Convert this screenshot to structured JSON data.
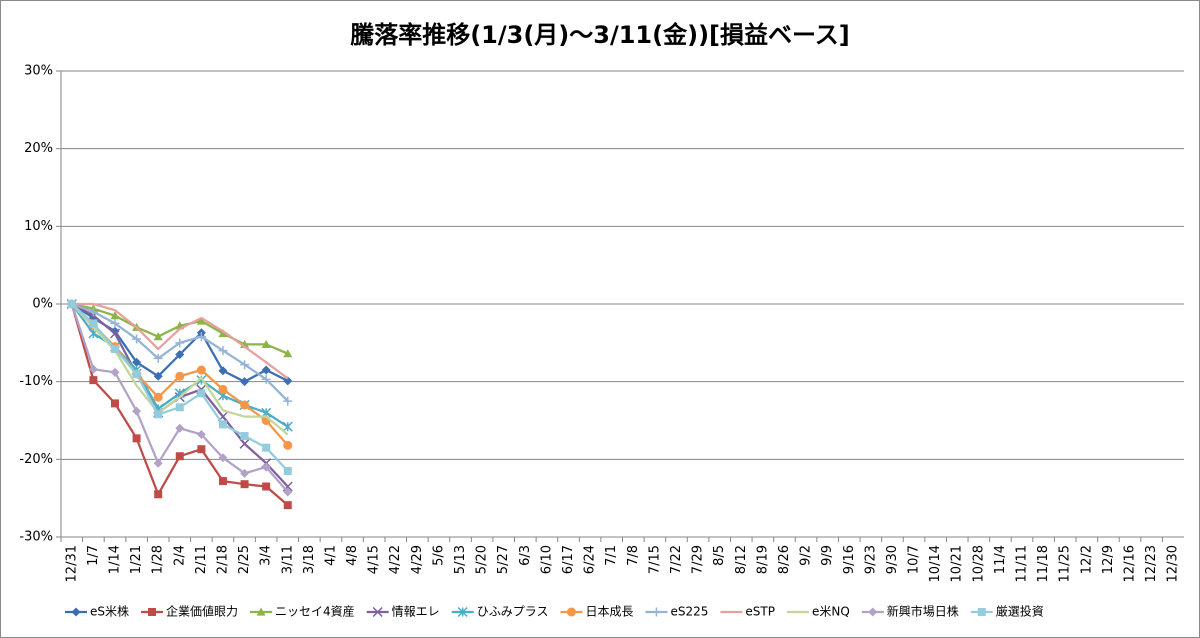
{
  "chart_data": {
    "type": "line",
    "title": "騰落率推移(1/3(月)～3/11(金))[損益ベース]",
    "categories": [
      "12/31",
      "1/7",
      "1/14",
      "1/21",
      "1/28",
      "2/4",
      "2/11",
      "2/18",
      "2/25",
      "3/4",
      "3/11",
      "3/18",
      "4/1",
      "4/8",
      "4/15",
      "4/22",
      "4/29",
      "5/6",
      "5/13",
      "5/20",
      "5/27",
      "6/3",
      "6/10",
      "6/17",
      "6/24",
      "7/1",
      "7/8",
      "7/15",
      "7/22",
      "7/29",
      "8/5",
      "8/12",
      "8/19",
      "8/26",
      "9/2",
      "9/9",
      "9/16",
      "9/23",
      "9/30",
      "10/7",
      "10/14",
      "10/21",
      "10/28",
      "11/4",
      "11/11",
      "11/18",
      "11/25",
      "12/2",
      "12/9",
      "12/16",
      "12/23",
      "12/30"
    ],
    "ylim": [
      -30,
      30
    ],
    "yticks": [
      {
        "value": -30,
        "label": "-30%"
      },
      {
        "value": -20,
        "label": "-20%"
      },
      {
        "value": -10,
        "label": "-10%"
      },
      {
        "value": 0,
        "label": "0%"
      },
      {
        "value": 10,
        "label": "10%"
      },
      {
        "value": 20,
        "label": "20%"
      },
      {
        "value": 30,
        "label": "30%"
      }
    ],
    "grid": true,
    "legend": "bottom",
    "series": [
      {
        "name": "eS米株",
        "color": "#3c6eb4",
        "marker": "diamond",
        "values": [
          0,
          -1.8,
          -3.5,
          -7.5,
          -9.3,
          -6.5,
          -3.7,
          -8.6,
          -10,
          -8.5,
          -9.9,
          null,
          null,
          null,
          null,
          null,
          null,
          null,
          null,
          null,
          null,
          null,
          null,
          null,
          null,
          null,
          null,
          null,
          null,
          null,
          null,
          null,
          null,
          null,
          null,
          null,
          null,
          null,
          null,
          null,
          null,
          null,
          null,
          null,
          null,
          null,
          null,
          null,
          null,
          null,
          null,
          null
        ]
      },
      {
        "name": "企業価値眼力",
        "color": "#be4b48",
        "marker": "square",
        "values": [
          0,
          -9.8,
          -12.8,
          -17.3,
          -24.5,
          -19.6,
          -18.7,
          -22.8,
          -23.2,
          -23.5,
          -25.9,
          null,
          null,
          null,
          null,
          null,
          null,
          null,
          null,
          null,
          null,
          null,
          null,
          null,
          null,
          null,
          null,
          null,
          null,
          null,
          null,
          null,
          null,
          null,
          null,
          null,
          null,
          null,
          null,
          null,
          null,
          null,
          null,
          null,
          null,
          null,
          null,
          null,
          null,
          null,
          null,
          null
        ]
      },
      {
        "name": "ニッセイ4資産",
        "color": "#8cb446",
        "marker": "triangle",
        "values": [
          0,
          -0.6,
          -1.5,
          -3,
          -4.2,
          -2.8,
          -2.2,
          -3.8,
          -5.2,
          -5.2,
          -6.4,
          null,
          null,
          null,
          null,
          null,
          null,
          null,
          null,
          null,
          null,
          null,
          null,
          null,
          null,
          null,
          null,
          null,
          null,
          null,
          null,
          null,
          null,
          null,
          null,
          null,
          null,
          null,
          null,
          null,
          null,
          null,
          null,
          null,
          null,
          null,
          null,
          null,
          null,
          null,
          null,
          null
        ]
      },
      {
        "name": "情報エレ",
        "color": "#7f5fa0",
        "marker": "x",
        "values": [
          0,
          -1.5,
          -3.8,
          -9,
          -14,
          -12,
          -11,
          -14.5,
          -18,
          -20.5,
          -23.5,
          null,
          null,
          null,
          null,
          null,
          null,
          null,
          null,
          null,
          null,
          null,
          null,
          null,
          null,
          null,
          null,
          null,
          null,
          null,
          null,
          null,
          null,
          null,
          null,
          null,
          null,
          null,
          null,
          null,
          null,
          null,
          null,
          null,
          null,
          null,
          null,
          null,
          null,
          null,
          null,
          null
        ]
      },
      {
        "name": "ひふみプラス",
        "color": "#4bacc6",
        "marker": "star",
        "values": [
          0,
          -3.8,
          -5.5,
          -8.5,
          -13.5,
          -11.5,
          -9.8,
          -11.8,
          -13,
          -14,
          -15.8,
          null,
          null,
          null,
          null,
          null,
          null,
          null,
          null,
          null,
          null,
          null,
          null,
          null,
          null,
          null,
          null,
          null,
          null,
          null,
          null,
          null,
          null,
          null,
          null,
          null,
          null,
          null,
          null,
          null,
          null,
          null,
          null,
          null,
          null,
          null,
          null,
          null,
          null,
          null,
          null,
          null
        ]
      },
      {
        "name": "日本成長",
        "color": "#f79646",
        "marker": "circle",
        "values": [
          0,
          -2.7,
          -5.5,
          -9,
          -12,
          -9.3,
          -8.5,
          -11,
          -13,
          -15,
          -18.2,
          null,
          null,
          null,
          null,
          null,
          null,
          null,
          null,
          null,
          null,
          null,
          null,
          null,
          null,
          null,
          null,
          null,
          null,
          null,
          null,
          null,
          null,
          null,
          null,
          null,
          null,
          null,
          null,
          null,
          null,
          null,
          null,
          null,
          null,
          null,
          null,
          null,
          null,
          null,
          null,
          null
        ]
      },
      {
        "name": "eS225",
        "color": "#95b3d7",
        "marker": "plus",
        "values": [
          0,
          -1,
          -2.5,
          -4.5,
          -7,
          -5,
          -4.2,
          -6,
          -7.8,
          -9.7,
          -12.5,
          null,
          null,
          null,
          null,
          null,
          null,
          null,
          null,
          null,
          null,
          null,
          null,
          null,
          null,
          null,
          null,
          null,
          null,
          null,
          null,
          null,
          null,
          null,
          null,
          null,
          null,
          null,
          null,
          null,
          null,
          null,
          null,
          null,
          null,
          null,
          null,
          null,
          null,
          null,
          null,
          null
        ]
      },
      {
        "name": "eSTP",
        "color": "#e6a0a0",
        "marker": "none",
        "values": [
          0,
          0,
          -0.8,
          -3,
          -5.8,
          -3.2,
          -1.8,
          -3.5,
          -5.5,
          -7.5,
          -9.6,
          null,
          null,
          null,
          null,
          null,
          null,
          null,
          null,
          null,
          null,
          null,
          null,
          null,
          null,
          null,
          null,
          null,
          null,
          null,
          null,
          null,
          null,
          null,
          null,
          null,
          null,
          null,
          null,
          null,
          null,
          null,
          null,
          null,
          null,
          null,
          null,
          null,
          null,
          null,
          null,
          null
        ]
      },
      {
        "name": "e米NQ",
        "color": "#c3d69b",
        "marker": "none",
        "values": [
          0,
          -3,
          -6,
          -10.5,
          -14,
          -12,
          -9.5,
          -13.7,
          -14.5,
          -14.5,
          -16.8,
          null,
          null,
          null,
          null,
          null,
          null,
          null,
          null,
          null,
          null,
          null,
          null,
          null,
          null,
          null,
          null,
          null,
          null,
          null,
          null,
          null,
          null,
          null,
          null,
          null,
          null,
          null,
          null,
          null,
          null,
          null,
          null,
          null,
          null,
          null,
          null,
          null,
          null,
          null,
          null,
          null
        ]
      },
      {
        "name": "新興市場日株",
        "color": "#b3a2c7",
        "marker": "diamond",
        "values": [
          0,
          -8.4,
          -8.8,
          -13.8,
          -20.5,
          -16,
          -16.8,
          -19.8,
          -21.8,
          -21,
          -24.2,
          null,
          null,
          null,
          null,
          null,
          null,
          null,
          null,
          null,
          null,
          null,
          null,
          null,
          null,
          null,
          null,
          null,
          null,
          null,
          null,
          null,
          null,
          null,
          null,
          null,
          null,
          null,
          null,
          null,
          null,
          null,
          null,
          null,
          null,
          null,
          null,
          null,
          null,
          null,
          null,
          null
        ]
      },
      {
        "name": "厳選投資",
        "color": "#93cddd",
        "marker": "square",
        "values": [
          0,
          -2.5,
          -5.8,
          -9,
          -14.2,
          -13.3,
          -11.5,
          -15.5,
          -17,
          -18.5,
          -21.5,
          null,
          null,
          null,
          null,
          null,
          null,
          null,
          null,
          null,
          null,
          null,
          null,
          null,
          null,
          null,
          null,
          null,
          null,
          null,
          null,
          null,
          null,
          null,
          null,
          null,
          null,
          null,
          null,
          null,
          null,
          null,
          null,
          null,
          null,
          null,
          null,
          null,
          null,
          null,
          null,
          null
        ]
      }
    ]
  }
}
